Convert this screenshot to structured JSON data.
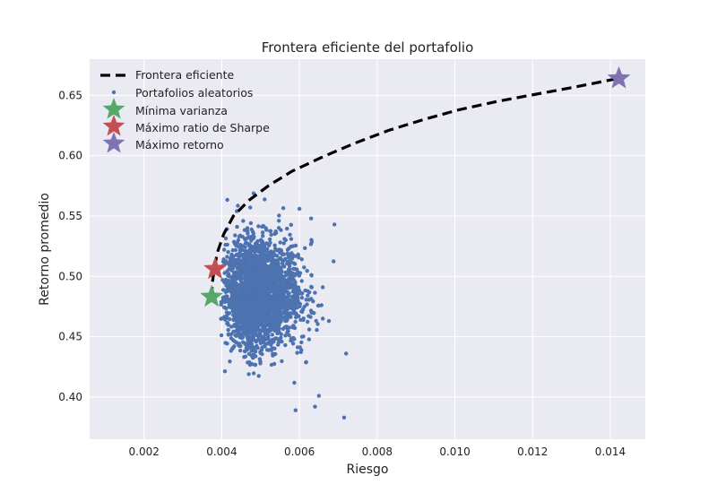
{
  "chart_data": {
    "type": "scatter",
    "title": "Frontera eficiente del portafolio",
    "xlabel": "Riesgo",
    "ylabel": "Retorno promedio",
    "xlim": [
      0.0006,
      0.0149
    ],
    "ylim": [
      0.365,
      0.68
    ],
    "xticks": [
      "0.002",
      "0.004",
      "0.006",
      "0.008",
      "0.010",
      "0.012",
      "0.014"
    ],
    "xtick_values": [
      0.002,
      0.004,
      0.006,
      0.008,
      0.01,
      0.012,
      0.014
    ],
    "yticks": [
      "0.40",
      "0.45",
      "0.50",
      "0.55",
      "0.60",
      "0.65"
    ],
    "ytick_values": [
      0.4,
      0.45,
      0.5,
      0.55,
      0.6,
      0.65
    ],
    "grid": true,
    "legend_position": "top-left",
    "colors": {
      "background": "#eaeaf2",
      "grid": "#ffffff",
      "frontier": "#000000",
      "random": "#4c72b0",
      "min_variance": "#55a868",
      "max_sharpe": "#c44e52",
      "max_return": "#8172b2"
    },
    "legend": [
      {
        "label": "Frontera eficiente",
        "kind": "dashed-line"
      },
      {
        "label": "Portafolios aleatorios",
        "kind": "dot"
      },
      {
        "label": "Mínima varianza",
        "kind": "star",
        "color_key": "min_variance"
      },
      {
        "label": "Máximo ratio de Sharpe",
        "kind": "star",
        "color_key": "max_sharpe"
      },
      {
        "label": "Máximo retorno",
        "kind": "star",
        "color_key": "max_return"
      }
    ],
    "frontier": {
      "name": "Frontera eficiente",
      "x": [
        0.00374,
        0.00376,
        0.00381,
        0.00389,
        0.00405,
        0.0043,
        0.0047,
        0.0052,
        0.0058,
        0.0066,
        0.0074,
        0.0083,
        0.0092,
        0.0101,
        0.0111,
        0.0121,
        0.0131,
        0.0142
      ],
      "y": [
        0.483,
        0.495,
        0.507,
        0.52,
        0.535,
        0.55,
        0.563,
        0.575,
        0.587,
        0.599,
        0.61,
        0.621,
        0.63,
        0.638,
        0.645,
        0.651,
        0.657,
        0.664
      ]
    },
    "random_portfolios": {
      "name": "Portafolios aleatorios",
      "count": 2500,
      "x_mean": 0.0049,
      "x_sd": 0.00045,
      "y_mean": 0.485,
      "y_sd": 0.022,
      "outliers": [
        {
          "x": 0.00715,
          "y": 0.383
        },
        {
          "x": 0.0072,
          "y": 0.436
        },
        {
          "x": 0.0069,
          "y": 0.543
        },
        {
          "x": 0.0066,
          "y": 0.465
        },
        {
          "x": 0.0064,
          "y": 0.392
        },
        {
          "x": 0.0065,
          "y": 0.401
        },
        {
          "x": 0.006,
          "y": 0.556
        },
        {
          "x": 0.0059,
          "y": 0.389
        },
        {
          "x": 0.0063,
          "y": 0.548
        },
        {
          "x": 0.0066,
          "y": 0.491
        }
      ]
    },
    "special_points": [
      {
        "name": "Mínima varianza",
        "x": 0.00374,
        "y": 0.483,
        "color_key": "min_variance"
      },
      {
        "name": "Máximo ratio de Sharpe",
        "x": 0.00383,
        "y": 0.506,
        "color_key": "max_sharpe"
      },
      {
        "name": "Máximo retorno",
        "x": 0.01422,
        "y": 0.664,
        "color_key": "max_return"
      }
    ]
  }
}
